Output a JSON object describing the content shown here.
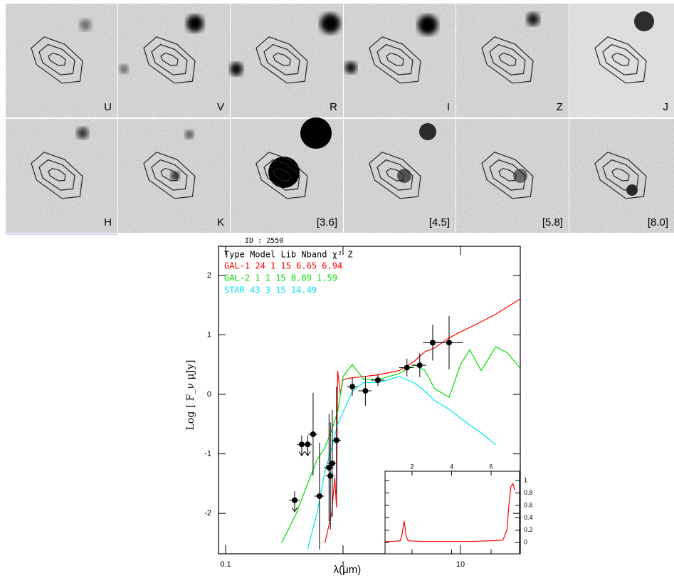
{
  "panels": [
    "U",
    "V",
    "R",
    "I",
    "Z",
    "J",
    "H",
    "K",
    "[3.6]",
    "[4.5]",
    "[5.8]",
    "[8.0]"
  ],
  "chart_data": {
    "type": "sed",
    "id_label": "ID : 2550",
    "legend_header": "Type Model Lib Nband χ²  Z",
    "legend": [
      {
        "text": "GAL-1 24 1 15    6.65 6.94",
        "color": "#ff0000"
      },
      {
        "text": "GAL-2 1 1 15    8.89 1.59",
        "color": "#00dd00"
      },
      {
        "text": "STAR 43 3 15   14.49",
        "color": "#00e5ee"
      }
    ],
    "xlabel": "λ(μm)",
    "ylabel": "Log [ F_ν μJy]",
    "xscale": "log",
    "xlim": [
      0.087,
      32.3
    ],
    "ylim": [
      -2.68,
      2.49
    ],
    "xticks": [
      {
        "value": 0.1,
        "label": "0.1"
      },
      1,
      10
    ],
    "yticks": [
      -2,
      -1,
      0,
      1,
      2
    ],
    "series": [
      {
        "color": "#ff0000",
        "x": [
          0.7,
          0.8,
          0.85,
          0.88,
          0.9,
          0.95,
          1.0,
          1.2,
          1.5,
          2,
          3,
          4,
          5,
          6,
          8,
          10,
          15,
          20,
          32
        ],
        "values": [
          -2.5,
          -2.0,
          -1.4,
          -1.9,
          0.4,
          0.0,
          0.25,
          0.28,
          0.3,
          0.33,
          0.4,
          0.55,
          0.72,
          0.78,
          0.95,
          1.05,
          1.22,
          1.35,
          1.6
        ]
      },
      {
        "color": "#00dd00",
        "x": [
          0.3,
          0.4,
          0.5,
          0.6,
          0.7,
          0.8,
          0.9,
          1.0,
          1.2,
          1.5,
          2,
          3,
          4,
          5,
          6,
          8,
          10,
          12,
          15,
          20,
          25,
          32
        ],
        "values": [
          -2.5,
          -2.0,
          -1.5,
          -1.1,
          -0.9,
          -0.6,
          -0.3,
          0.3,
          0.5,
          0.25,
          0.25,
          0.35,
          0.5,
          0.4,
          0.1,
          -0.05,
          0.5,
          0.75,
          0.4,
          0.8,
          0.7,
          0.45
        ]
      },
      {
        "color": "#00e5ee",
        "x": [
          0.5,
          0.6,
          0.7,
          0.8,
          0.9,
          1.0,
          1.2,
          1.5,
          2,
          3,
          4,
          5,
          6,
          8,
          10,
          15,
          20
        ],
        "values": [
          -2.6,
          -2.0,
          -1.3,
          -0.9,
          -0.5,
          -0.3,
          0.05,
          0.2,
          0.2,
          0.3,
          0.2,
          0.05,
          -0.1,
          -0.25,
          -0.4,
          -0.65,
          -0.85
        ]
      }
    ],
    "points": {
      "x": [
        0.387,
        0.445,
        0.5,
        0.556,
        0.63,
        0.76,
        0.78,
        0.81,
        0.88,
        1.2,
        1.55,
        1.98,
        3.5,
        4.5,
        5.8,
        8.0
      ],
      "values": [
        -1.78,
        -0.84,
        -0.84,
        -0.67,
        -1.71,
        -1.23,
        -1.37,
        -1.16,
        -0.77,
        0.13,
        0.06,
        0.24,
        0.45,
        0.49,
        0.87,
        0.87
      ],
      "yerr": [
        0.15,
        0.15,
        0.15,
        0.7,
        0.9,
        0.9,
        0.9,
        0.9,
        0.9,
        0.15,
        0.25,
        0.1,
        0.15,
        0.2,
        0.3,
        0.45
      ],
      "xerr": [
        0.04,
        0.04,
        0.04,
        0.05,
        0.06,
        0.07,
        0.07,
        0.07,
        0.08,
        0.12,
        0.2,
        0.25,
        0.5,
        0.6,
        1.0,
        2.5
      ],
      "upper_limit": [
        true,
        true,
        true,
        false,
        false,
        false,
        false,
        false,
        false,
        false,
        false,
        false,
        false,
        false,
        false,
        false
      ]
    },
    "inset": {
      "xlim": [
        0.63,
        7.44
      ],
      "ylim": [
        -0.18,
        1.15
      ],
      "xticks": [
        2,
        4,
        6
      ],
      "yticks": [
        0,
        0.2,
        0.4,
        0.6,
        0.8,
        1
      ],
      "color": "#ff0000",
      "x": [
        0.63,
        1.0,
        1.4,
        1.5,
        1.6,
        1.7,
        1.8,
        2.5,
        4,
        5,
        6,
        6.6,
        6.8,
        6.9,
        7.0,
        7.1,
        7.2
      ],
      "values": [
        0.02,
        0.02,
        0.03,
        0.15,
        0.35,
        0.1,
        0.03,
        0.02,
        0.02,
        0.02,
        0.03,
        0.04,
        0.2,
        0.6,
        0.9,
        0.95,
        0.85
      ]
    }
  }
}
